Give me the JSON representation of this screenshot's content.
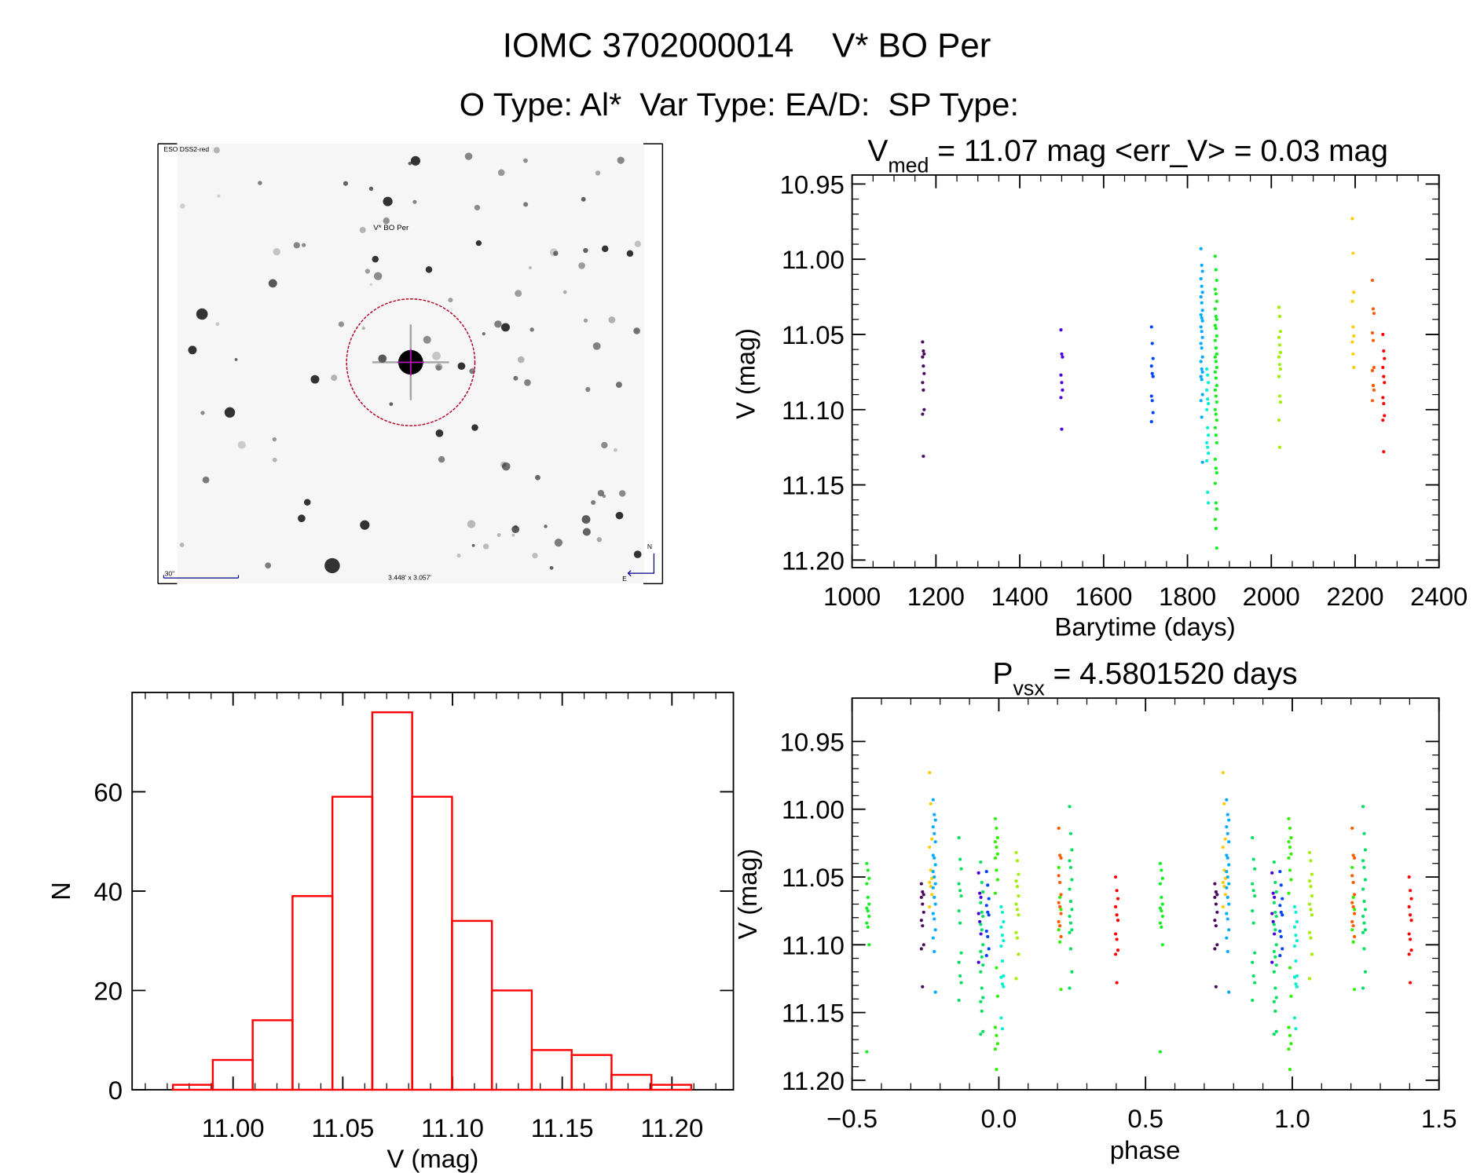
{
  "header": {
    "title": "IOMC 3702000014    V* BO Per",
    "subtitle": "O Type: Al*  Var Type: EA/D:  SP Type:"
  },
  "finder_image": {
    "survey_label": "ESO DSS2-red",
    "target_label": "V* BO Per",
    "scale_label": "30\"",
    "size_label": "3.448' x 3.057'",
    "north_label": "N",
    "east_label": "E",
    "circle_color": "#b00020",
    "label_color": "#00008b"
  },
  "chart_data": [
    {
      "type": "scatter",
      "title_main": "V",
      "title_sub": "med",
      "title_rest": " = 11.07 mag <err_V> = 0.03 mag",
      "xlabel": "Barytime (days)",
      "ylabel": "V (mag)",
      "xlim": [
        1000,
        2400
      ],
      "ylim": [
        10.944,
        11.205
      ],
      "y_inverted": true,
      "xticks": [
        1000,
        1200,
        1400,
        1600,
        1800,
        2000,
        2200,
        2400
      ],
      "xtick_labels": [
        "1000",
        "1200",
        "1400",
        "1600",
        "1800",
        "2000",
        "2200",
        "2400"
      ],
      "yticks": [
        10.95,
        11.0,
        11.05,
        11.1,
        11.15,
        11.2
      ],
      "ytick_labels": [
        "10.95",
        "11.00",
        "11.05",
        "11.10",
        "11.15",
        "11.20"
      ],
      "series": [
        {
          "color": "#4b0a5e",
          "x": 1170,
          "y": [
            11.055,
            11.061,
            11.063,
            11.065,
            11.071,
            11.076,
            11.082,
            11.087,
            11.1,
            11.103,
            11.131
          ]
        },
        {
          "color": "#4a00dd",
          "x": 1500,
          "y": [
            11.047,
            11.063,
            11.065,
            11.077,
            11.082,
            11.087,
            11.092,
            11.113
          ]
        },
        {
          "color": "#0044ff",
          "x": 1716,
          "y": [
            11.045,
            11.056,
            11.066,
            11.071,
            11.076,
            11.078,
            11.091,
            11.094,
            11.102,
            11.108
          ]
        },
        {
          "color": "#00aaff",
          "x": 1834,
          "y": [
            10.993,
            11.004,
            11.008,
            11.013,
            11.018,
            11.022,
            11.025,
            11.029,
            11.034,
            11.037,
            11.039,
            11.041,
            11.045,
            11.048,
            11.052,
            11.056,
            11.059,
            11.065,
            11.068,
            11.073,
            11.075,
            11.078,
            11.08,
            11.09,
            11.094,
            11.105,
            11.135
          ]
        },
        {
          "color": "#00f0d0",
          "x": 1848,
          "y": [
            11.073,
            11.077,
            11.082,
            11.087,
            11.093,
            11.096,
            11.1,
            11.112,
            11.117,
            11.122,
            11.125,
            11.129,
            11.134,
            11.155,
            11.162
          ]
        },
        {
          "color": "#10f020",
          "x": 1868,
          "y": [
            10.998,
            11.007,
            11.014,
            11.02,
            11.023,
            11.028,
            11.033,
            11.038,
            11.04,
            11.044,
            11.046,
            11.051,
            11.054,
            11.059,
            11.063,
            11.065,
            11.068,
            11.072,
            11.075,
            11.079,
            11.084,
            11.087,
            11.091,
            11.095,
            11.1,
            11.103,
            11.107,
            11.112,
            11.117,
            11.122,
            11.133,
            11.139,
            11.142,
            11.149,
            11.162,
            11.166,
            11.173,
            11.179,
            11.192
          ]
        },
        {
          "color": "#a0ee00",
          "x": 2020,
          "y": [
            11.032,
            11.038,
            11.048,
            11.052,
            11.057,
            11.062,
            11.065,
            11.07,
            11.073,
            11.078,
            11.091,
            11.095,
            11.107,
            11.125
          ]
        },
        {
          "color": "#ffcc00",
          "x": 2195,
          "y": [
            10.973,
            10.996,
            11.022,
            11.028,
            11.045,
            11.051,
            11.055,
            11.063,
            11.072
          ]
        },
        {
          "color": "#ff5a00",
          "x": 2243,
          "y": [
            11.014,
            11.033,
            11.036,
            11.049,
            11.054,
            11.072,
            11.074,
            11.084,
            11.087,
            11.094
          ]
        },
        {
          "color": "#ff0000",
          "x": 2268,
          "y": [
            11.05,
            11.061,
            11.066,
            11.072,
            11.078,
            11.082,
            11.092,
            11.096,
            11.104,
            11.107,
            11.128
          ]
        }
      ]
    },
    {
      "type": "scatter",
      "title_main": "P",
      "title_sub": "vsx",
      "title_rest": " = 4.5801520 days",
      "xlabel": "phase",
      "ylabel": "V (mag)",
      "xlim": [
        -0.5,
        1.5
      ],
      "ylim": [
        10.918,
        11.207
      ],
      "y_inverted": true,
      "phase_repeated": true,
      "xticks": [
        -0.5,
        0.0,
        0.5,
        1.0,
        1.5
      ],
      "xtick_labels": [
        "−0.5",
        "0.0",
        "0.5",
        "1.0",
        "1.5"
      ],
      "yticks": [
        10.95,
        11.0,
        11.05,
        11.1,
        11.15,
        11.2
      ],
      "ytick_labels": [
        "10.95",
        "11.00",
        "11.05",
        "11.10",
        "11.15",
        "11.20"
      ],
      "series": [
        {
          "color": "#10f020",
          "phase": -0.446,
          "y": [
            11.04,
            11.045,
            11.051,
            11.055,
            11.065,
            11.07,
            11.073,
            11.075,
            11.079,
            11.084,
            11.087,
            11.1,
            11.179
          ]
        },
        {
          "color": "#4b0a5e",
          "phase": -0.26,
          "y": [
            11.055,
            11.061,
            11.063,
            11.065,
            11.07,
            11.076,
            11.082,
            11.086,
            11.1,
            11.103,
            11.131
          ]
        },
        {
          "color": "#ffcc00",
          "phase": -0.232,
          "y": [
            10.973,
            10.996,
            11.022,
            11.028,
            11.045,
            11.051,
            11.054,
            11.057,
            11.063,
            11.072
          ]
        },
        {
          "color": "#00aaff",
          "phase": -0.22,
          "y": [
            10.993,
            11.004,
            11.008,
            11.013,
            11.018,
            11.024,
            11.034,
            11.036,
            11.041,
            11.046,
            11.05,
            11.055,
            11.058,
            11.065,
            11.07,
            11.077,
            11.081,
            11.089,
            11.095,
            11.105,
            11.135
          ]
        },
        {
          "color": "#00e060",
          "phase": -0.132,
          "y": [
            11.021,
            11.037,
            11.044,
            11.055,
            11.06,
            11.064,
            11.075,
            11.084,
            11.106,
            11.113,
            11.123,
            11.128,
            11.141
          ]
        },
        {
          "color": "#4a00dd",
          "phase": -0.065,
          "y": [
            11.047,
            11.062,
            11.065,
            11.077,
            11.083,
            11.092,
            11.113
          ]
        },
        {
          "color": "#00e060",
          "phase": -0.058,
          "y": [
            11.039,
            11.054,
            11.061,
            11.069,
            11.076,
            11.079,
            11.085,
            11.089,
            11.1,
            11.105,
            11.109,
            11.115,
            11.12,
            11.132,
            11.139,
            11.142,
            11.149,
            11.164,
            11.166
          ]
        },
        {
          "color": "#0044ff",
          "phase": -0.038,
          "y": [
            11.046,
            11.056,
            11.066,
            11.071,
            11.076,
            11.078,
            11.09,
            11.094,
            11.103,
            11.108
          ]
        },
        {
          "color": "#30f000",
          "phase": -0.008,
          "y": [
            11.007,
            11.014,
            11.021,
            11.024,
            11.028,
            11.033,
            11.036,
            11.045,
            11.052,
            11.062,
            11.117,
            11.138,
            11.161,
            11.167,
            11.173,
            11.177,
            11.192
          ]
        },
        {
          "color": "#00f0d0",
          "phase": 0.012,
          "y": [
            11.072,
            11.076,
            11.083,
            11.087,
            11.093,
            11.097,
            11.101,
            11.112,
            11.123,
            11.124,
            11.129,
            11.131,
            11.154,
            11.162
          ]
        },
        {
          "color": "#a0ee00",
          "phase": 0.063,
          "y": [
            11.032,
            11.038,
            11.048,
            11.053,
            11.057,
            11.064,
            11.07,
            11.074,
            11.078,
            11.091,
            11.095,
            11.107,
            11.125
          ]
        },
        {
          "color": "#ff5a00",
          "phase": 0.208,
          "y": [
            11.014,
            11.034,
            11.036,
            11.049,
            11.054,
            11.063,
            11.069,
            11.072,
            11.077,
            11.083,
            11.086,
            11.094
          ]
        },
        {
          "color": "#30f000",
          "phase": 0.208,
          "y": [
            11.043,
            11.065,
            11.074,
            11.089,
            11.098,
            11.133
          ]
        },
        {
          "color": "#00e060",
          "phase": 0.245,
          "y": [
            10.998,
            11.018,
            11.03,
            11.038,
            11.043,
            11.052,
            11.059,
            11.068,
            11.074,
            11.079,
            11.084,
            11.089,
            11.091,
            11.103,
            11.12,
            11.132
          ]
        },
        {
          "color": "#ff0000",
          "phase": 0.402,
          "y": [
            11.05,
            11.06,
            11.066,
            11.072,
            11.078,
            11.082,
            11.092,
            11.096,
            11.104,
            11.107,
            11.128
          ]
        }
      ]
    },
    {
      "type": "bar",
      "histogram": true,
      "xlabel": "V (mag)",
      "ylabel": "N",
      "xlim": [
        10.954,
        11.228
      ],
      "ylim": [
        0,
        80
      ],
      "bin_start": 10.9726,
      "bin_width": 0.01817,
      "values": [
        1,
        6,
        14,
        39,
        59,
        76,
        59,
        34,
        20,
        8,
        7,
        3,
        1
      ],
      "bar_color": "#ff0000",
      "xticks": [
        11.0,
        11.05,
        11.1,
        11.15,
        11.2
      ],
      "xtick_labels": [
        "11.00",
        "11.05",
        "11.10",
        "11.15",
        "11.20"
      ],
      "yticks": [
        0,
        20,
        40,
        60
      ],
      "ytick_labels": [
        "0",
        "20",
        "40",
        "60"
      ]
    }
  ]
}
